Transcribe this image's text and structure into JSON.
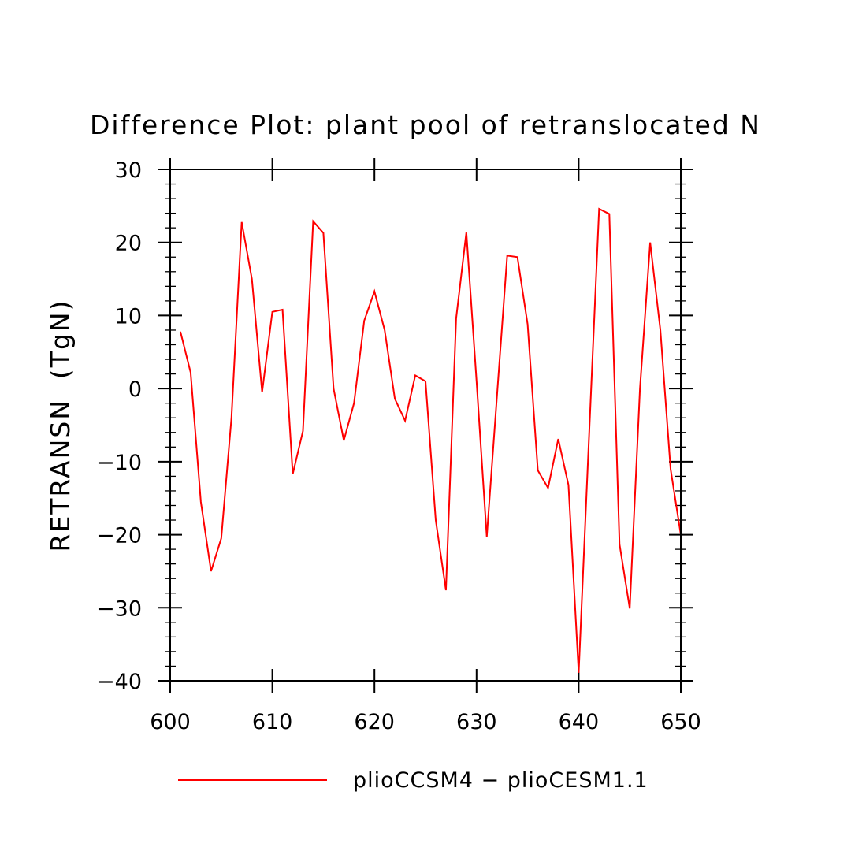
{
  "chart_data": {
    "type": "line",
    "title": "Difference Plot: plant pool of retranslocated N",
    "ylabel": "RETRANSN  (TgN)",
    "xlabel": "",
    "xlim": [
      600,
      650
    ],
    "ylim": [
      -40,
      30
    ],
    "x_ticks": [
      600,
      610,
      620,
      630,
      640,
      650
    ],
    "x_tick_labels": [
      "600",
      "610",
      "620",
      "630",
      "640",
      "650"
    ],
    "y_ticks": [
      -40,
      -30,
      -20,
      -10,
      0,
      10,
      20,
      30
    ],
    "y_tick_labels": [
      "−40",
      "−30",
      "−20",
      "−10",
      "0",
      "10",
      "20",
      "30"
    ],
    "legend_position": "bottom",
    "series": [
      {
        "name": "plioCCSM4 − plioCESM1.1",
        "color": "#ff0000",
        "x": [
          601,
          602,
          603,
          604,
          605,
          606,
          607,
          608,
          609,
          610,
          611,
          612,
          613,
          614,
          615,
          616,
          617,
          618,
          619,
          620,
          621,
          622,
          623,
          624,
          625,
          626,
          627,
          628,
          629,
          630,
          631,
          632,
          633,
          634,
          635,
          636,
          637,
          638,
          639,
          640,
          641,
          642,
          643,
          644,
          645,
          646,
          647,
          648,
          649,
          650
        ],
        "values": [
          7.8,
          2.2,
          -15.5,
          -25.0,
          -20.5,
          -4.0,
          22.8,
          15.0,
          -0.5,
          10.5,
          10.8,
          -11.7,
          -5.8,
          22.9,
          21.3,
          0.0,
          -7.1,
          -2.0,
          9.3,
          13.3,
          8.0,
          -1.4,
          -4.4,
          1.8,
          1.0,
          -18.0,
          -27.6,
          9.6,
          21.4,
          1.0,
          -20.3,
          -1.0,
          18.2,
          18.0,
          8.8,
          -11.2,
          -13.6,
          -6.9,
          -13.2,
          -38.9,
          -7.0,
          24.6,
          23.9,
          -21.3,
          -30.1,
          0.0,
          20.0,
          8.0,
          -11.0,
          -20.0
        ]
      }
    ]
  }
}
